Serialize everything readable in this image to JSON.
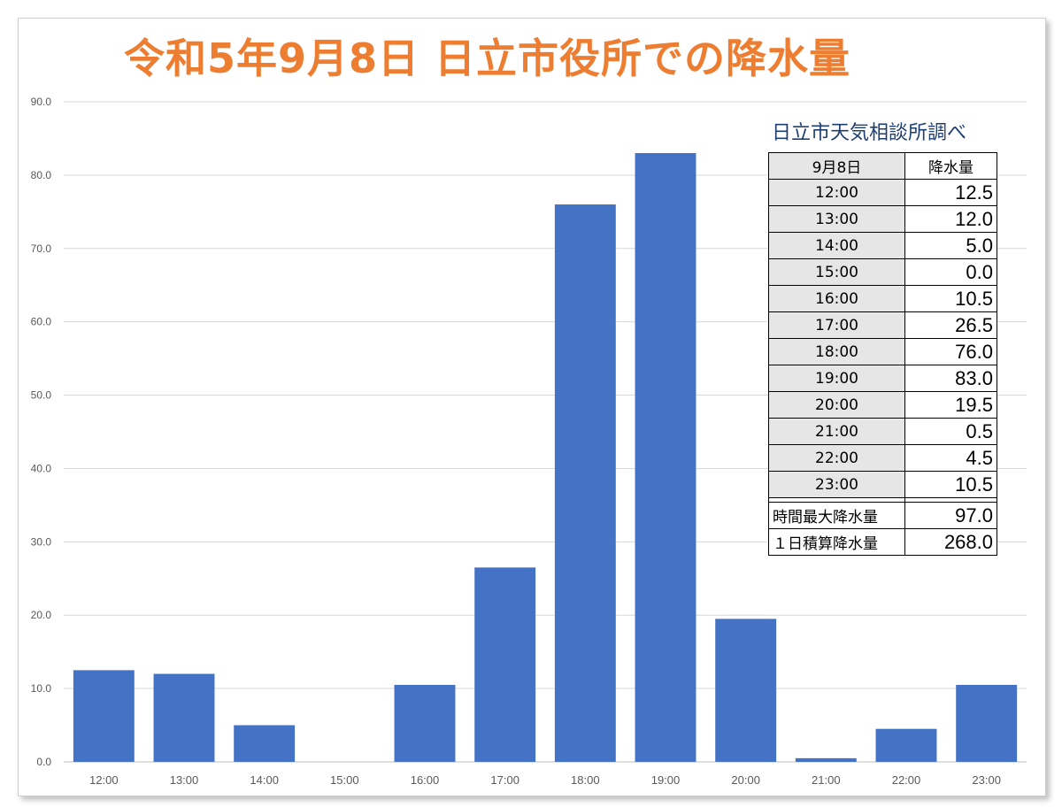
{
  "chart_data": {
    "type": "bar",
    "title": "令和5年9月8日 日立市役所での降水量",
    "categories": [
      "12:00",
      "13:00",
      "14:00",
      "15:00",
      "16:00",
      "17:00",
      "18:00",
      "19:00",
      "20:00",
      "21:00",
      "22:00",
      "23:00"
    ],
    "values": [
      12.5,
      12.0,
      5.0,
      0.0,
      10.5,
      26.5,
      76.0,
      83.0,
      19.5,
      0.5,
      4.5,
      10.5
    ],
    "ylim": [
      0,
      90
    ],
    "yticks": [
      "0.0",
      "10.0",
      "20.0",
      "30.0",
      "40.0",
      "50.0",
      "60.0",
      "70.0",
      "80.0",
      "90.0"
    ],
    "grid": true,
    "bar_color": "#4472c4",
    "title_color": "#ed7d31"
  },
  "table": {
    "caption": "日立市天気相談所調べ",
    "header": [
      "9月8日",
      "降水量"
    ],
    "rows": [
      {
        "time": "12:00",
        "value": "12.5"
      },
      {
        "time": "13:00",
        "value": "12.0"
      },
      {
        "time": "14:00",
        "value": "5.0"
      },
      {
        "time": "15:00",
        "value": "0.0"
      },
      {
        "time": "16:00",
        "value": "10.5"
      },
      {
        "time": "17:00",
        "value": "26.5"
      },
      {
        "time": "18:00",
        "value": "76.0"
      },
      {
        "time": "19:00",
        "value": "83.0"
      },
      {
        "time": "20:00",
        "value": "19.5"
      },
      {
        "time": "21:00",
        "value": "0.5"
      },
      {
        "time": "22:00",
        "value": "4.5"
      },
      {
        "time": "23:00",
        "value": "10.5"
      }
    ],
    "summary": [
      {
        "label": "時間最大降水量",
        "value": "97.0"
      },
      {
        "label": "１日積算降水量",
        "value": "268.0"
      }
    ]
  }
}
